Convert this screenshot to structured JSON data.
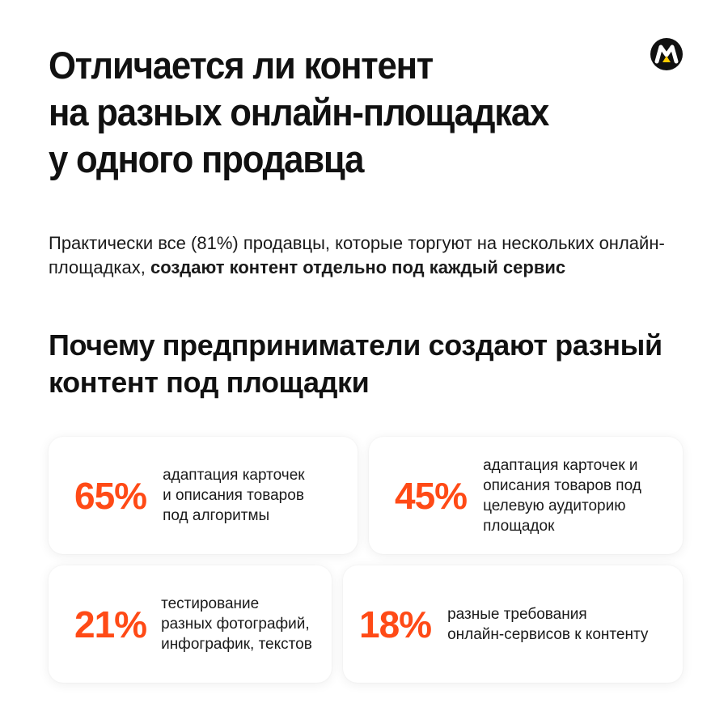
{
  "header": {
    "title": "Отличается ли контент\nна разных онлайн-площадках\nу одного продавца"
  },
  "intro": {
    "text_regular": "Практически все (81%) продавцы, которые торгуют на нескольких онлайн-площадках, ",
    "text_bold": "создают контент отдельно под каждый сервис"
  },
  "section": {
    "title": "Почему предприниматели создают разный контент под площадки"
  },
  "stats": [
    {
      "percent": "65%",
      "text": "адаптация карточек\nи описания товаров\nпод алгоритмы"
    },
    {
      "percent": "45%",
      "text": "адаптация карточек и\nописания товаров под\nцелевую аудиторию\nплощадок"
    },
    {
      "percent": "21%",
      "text": "тестирование\nразных фотографий,\nинфографик, текстов"
    },
    {
      "percent": "18%",
      "text": "разные требования\nонлайн-сервисов к контенту"
    }
  ],
  "colors": {
    "accent": "#ff4a16",
    "text": "#111111",
    "background": "#ffffff"
  },
  "logo": {
    "icon": "market-m-logo"
  }
}
